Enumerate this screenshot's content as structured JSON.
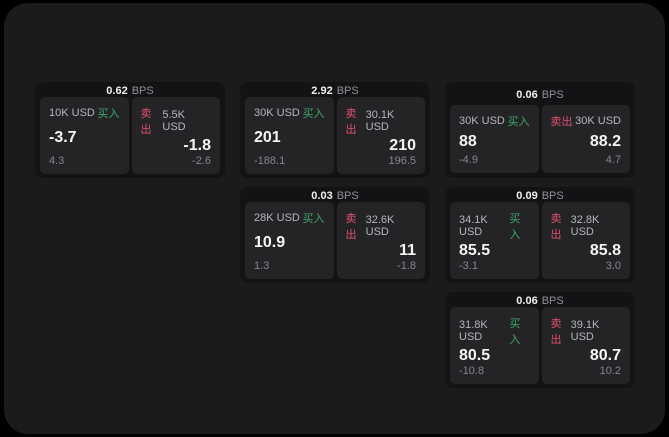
{
  "labels": {
    "bps_suffix": "BPS",
    "buy": "买入",
    "sell": "卖出"
  },
  "colors": {
    "background_outer": "#000000",
    "background": "#1b1b1d",
    "card_background": "#131315",
    "panel_background": "#242427",
    "buy_green": "#3aa968",
    "sell_red": "#e0516d",
    "primary_text": "#f5f5f5",
    "secondary_text": "#b5b7ba",
    "muted_text": "#85878a"
  },
  "cards": [
    {
      "bps": "0.62",
      "buy": {
        "notional": "10K USD",
        "price": "-3.7",
        "sub": "4.3"
      },
      "sell": {
        "notional": "5.5K USD",
        "price": "-1.8",
        "sub": "-2.6"
      }
    },
    {
      "bps": "2.92",
      "buy": {
        "notional": "30K USD",
        "price": "201",
        "sub": "-188.1"
      },
      "sell": {
        "notional": "30.1K USD",
        "price": "210",
        "sub": "196.5"
      }
    },
    {
      "bps": "0.06",
      "buy": {
        "notional": "30K USD",
        "price": "88",
        "sub": "-4.9"
      },
      "sell": {
        "notional": "30K USD",
        "price": "88.2",
        "sub": "4.7"
      }
    },
    {
      "bps": "0.03",
      "buy": {
        "notional": "28K USD",
        "price": "10.9",
        "sub": "1.3"
      },
      "sell": {
        "notional": "32.6K USD",
        "price": "11",
        "sub": "-1.8"
      }
    },
    {
      "bps": "0.09",
      "buy": {
        "notional": "34.1K USD",
        "price": "85.5",
        "sub": "-3.1"
      },
      "sell": {
        "notional": "32.8K USD",
        "price": "85.8",
        "sub": "3.0"
      }
    },
    {
      "bps": "0.06",
      "buy": {
        "notional": "31.8K USD",
        "price": "80.5",
        "sub": "-10.8"
      },
      "sell": {
        "notional": "39.1K USD",
        "price": "80.7",
        "sub": "10.2"
      }
    }
  ]
}
